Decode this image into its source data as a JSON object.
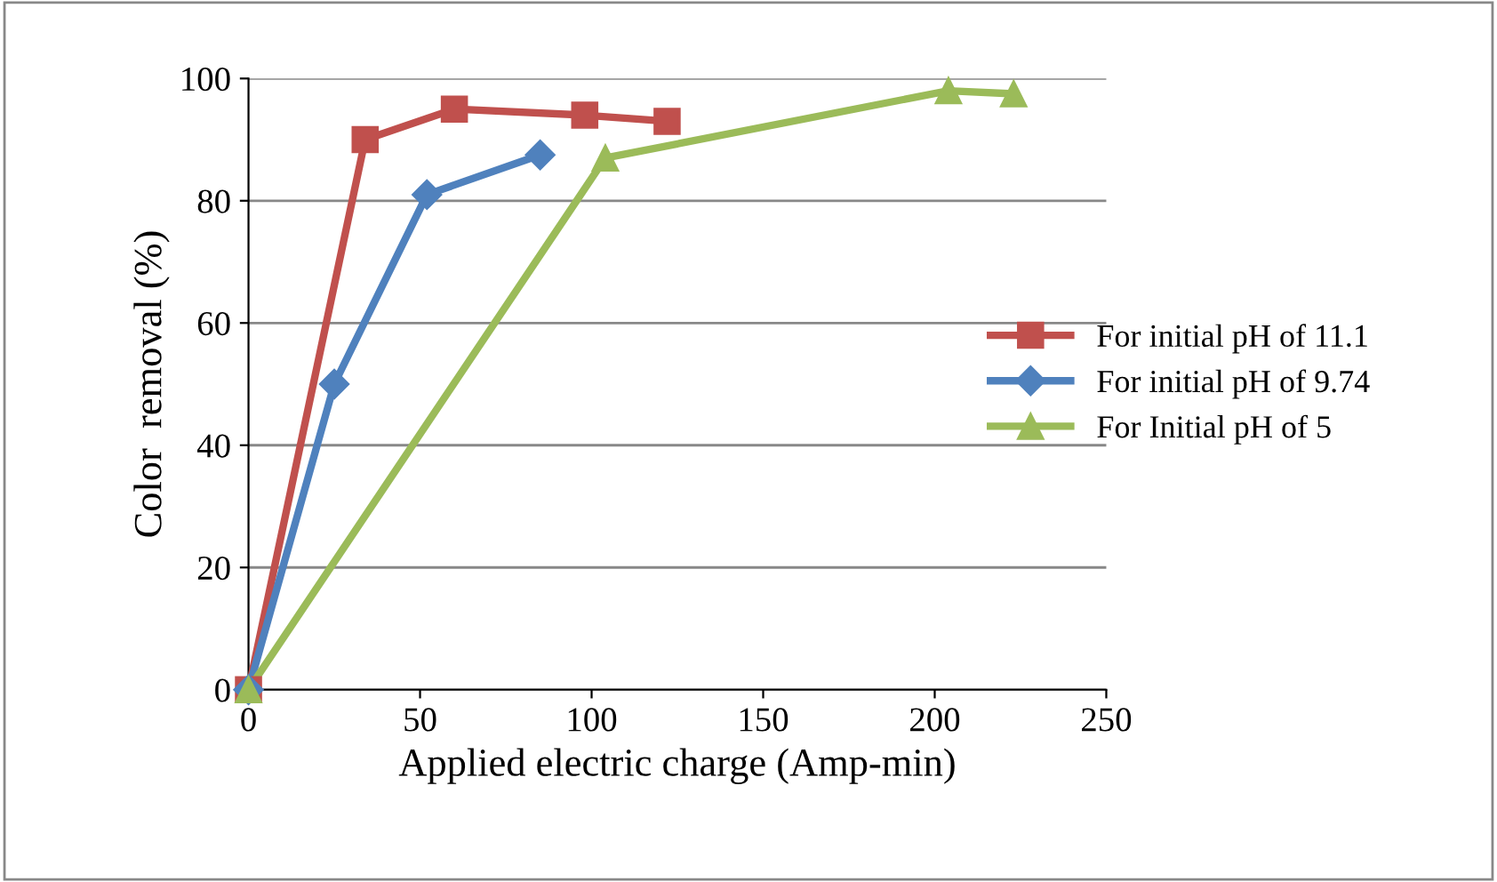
{
  "chart_data": {
    "type": "line",
    "xlabel": "Applied electric charge (Amp-min)",
    "ylabel": "Color  removal (%)",
    "xlim": [
      0,
      250
    ],
    "ylim": [
      0,
      100
    ],
    "xticks": [
      0,
      50,
      100,
      150,
      200,
      250
    ],
    "yticks": [
      0,
      20,
      40,
      60,
      80,
      100
    ],
    "grid": "y",
    "legend": "right",
    "line_style": "solid",
    "series": [
      {
        "name": "For initial pH of 11.1",
        "color": "#c0504d",
        "marker": "square",
        "x": [
          0,
          34,
          60,
          98,
          122
        ],
        "values": [
          0,
          90,
          95,
          94,
          93
        ]
      },
      {
        "name": "For initial pH of 9.74",
        "color": "#4f81bd",
        "marker": "diamond",
        "x": [
          0,
          25,
          52,
          85
        ],
        "values": [
          0,
          50,
          81,
          87.5
        ]
      },
      {
        "name": "For Initial pH of 5",
        "color": "#9bbb59",
        "marker": "triangle",
        "x": [
          0,
          104,
          204,
          223
        ],
        "values": [
          0,
          87,
          98,
          97.5
        ]
      }
    ]
  }
}
